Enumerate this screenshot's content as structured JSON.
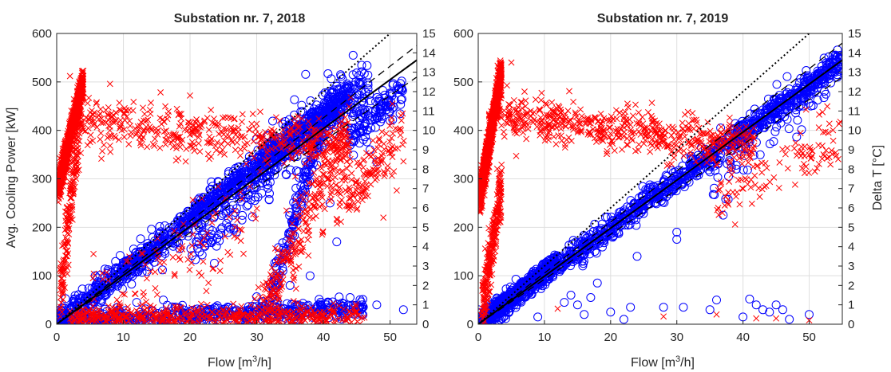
{
  "figure": {
    "colors": {
      "cooling_power": "#0000ff",
      "delta_t": "#ff0000",
      "fit": "#000000",
      "grid": "#dedede",
      "axes": "#262626"
    },
    "marker_shapes": {
      "cooling_power": "circle",
      "delta_t": "x"
    }
  },
  "chart_data": [
    {
      "type": "scatter",
      "title": "Substation nr. 7, 2018",
      "xlabel_main": "Flow [m",
      "xlabel_sup": "3",
      "xlabel_tail": "/h]",
      "ylabel_left": "Avg. Cooling Power [kW]",
      "ylabel_right": "",
      "xlim": [
        0,
        54
      ],
      "ylim_left": [
        0,
        600
      ],
      "ylim_right": [
        0,
        15
      ],
      "xticks": [
        0,
        10,
        20,
        30,
        40,
        50
      ],
      "yticks_left": [
        0,
        100,
        200,
        300,
        400,
        500,
        600
      ],
      "yticks_right": [
        0,
        1,
        2,
        3,
        4,
        5,
        6,
        7,
        8,
        9,
        10,
        11,
        12,
        13,
        14,
        15
      ],
      "grid": true,
      "reference_lines": [
        {
          "style": "dotted",
          "x": [
            0,
            50
          ],
          "y": [
            0,
            600
          ]
        },
        {
          "style": "dashed",
          "x": [
            0,
            54
          ],
          "y": [
            0,
            575
          ]
        },
        {
          "style": "solid",
          "x": [
            0,
            54
          ],
          "y": [
            0,
            545
          ]
        },
        {
          "style": "dashed",
          "x": [
            0,
            54
          ],
          "y": [
            0,
            510
          ]
        }
      ],
      "series": [
        {
          "axis": "left",
          "marker": "circle",
          "clusters": [
            {
              "x": [
                0.3,
                44
              ],
              "y": [
                5,
                475
              ],
              "n": 1100,
              "spread": 14
            },
            {
              "x": [
                30,
                47
              ],
              "y": [
                330,
                500
              ],
              "n": 260,
              "spread": 30
            },
            {
              "x": [
                0.3,
                46
              ],
              "y": [
                5,
                35
              ],
              "n": 520,
              "spread": 9
            },
            {
              "x": [
                31,
                40
              ],
              "y": [
                5,
                420
              ],
              "n": 160,
              "spread": 18
            },
            {
              "x": [
                20,
                32
              ],
              "y": [
                150,
                300
              ],
              "n": 90,
              "spread": 25
            },
            {
              "x": [
                44,
                52
              ],
              "y": [
                390,
                480
              ],
              "n": 120,
              "spread": 20
            }
          ],
          "points": [
            {
              "x": 48,
              "y": 40
            },
            {
              "x": 52,
              "y": 30
            },
            {
              "x": 47,
              "y": 360
            },
            {
              "x": 48,
              "y": 335
            },
            {
              "x": 50,
              "y": 420
            },
            {
              "x": 42,
              "y": 170
            },
            {
              "x": 35,
              "y": 80
            },
            {
              "x": 38,
              "y": 100
            },
            {
              "x": 41,
              "y": 250
            },
            {
              "x": 44,
              "y": 55
            },
            {
              "x": 12,
              "y": 45
            },
            {
              "x": 16,
              "y": 50
            }
          ]
        },
        {
          "axis": "right",
          "marker": "x",
          "clusters": [
            {
              "x": [
                0.2,
                4
              ],
              "y": [
                7,
                12.5
              ],
              "n": 900,
              "spread": 0.4
            },
            {
              "x": [
                0.5,
                4
              ],
              "y": [
                1.5,
                12
              ],
              "n": 200,
              "spread": 0.9
            },
            {
              "x": [
                4,
                44
              ],
              "y": [
                10.5,
                9.2
              ],
              "n": 450,
              "spread": 0.6
            },
            {
              "x": [
                30,
                44
              ],
              "y": [
                0.3,
                10
              ],
              "n": 280,
              "spread": 0.9
            },
            {
              "x": [
                2,
                46
              ],
              "y": [
                0.4,
                0.4
              ],
              "n": 520,
              "spread": 0.3
            },
            {
              "x": [
                5,
                30
              ],
              "y": [
                0.5,
                6
              ],
              "n": 110,
              "spread": 1.3
            },
            {
              "x": [
                42,
                52
              ],
              "y": [
                6,
                10
              ],
              "n": 140,
              "spread": 0.8
            }
          ],
          "points": [
            {
              "x": 2,
              "y": 12.8
            },
            {
              "x": 8,
              "y": 12.4
            },
            {
              "x": 20,
              "y": 11.8
            },
            {
              "x": 52,
              "y": 8.4
            },
            {
              "x": 51,
              "y": 6.9
            },
            {
              "x": 49,
              "y": 5.5
            }
          ]
        }
      ]
    },
    {
      "type": "scatter",
      "title": "Substation nr. 7, 2019",
      "xlabel_main": "Flow [m",
      "xlabel_sup": "3",
      "xlabel_tail": "/h]",
      "ylabel_left": "",
      "ylabel_right": "Delta T [°C]",
      "xlim": [
        0,
        55
      ],
      "ylim_left": [
        0,
        600
      ],
      "ylim_right": [
        0,
        15
      ],
      "xticks": [
        0,
        10,
        20,
        30,
        40,
        50
      ],
      "yticks_left": [
        0,
        100,
        200,
        300,
        400,
        500,
        600
      ],
      "yticks_right": [
        0,
        1,
        2,
        3,
        4,
        5,
        6,
        7,
        8,
        9,
        10,
        11,
        12,
        13,
        14,
        15
      ],
      "grid": true,
      "reference_lines": [
        {
          "style": "dotted",
          "x": [
            0,
            50
          ],
          "y": [
            0,
            600
          ]
        },
        {
          "style": "dashed",
          "x": [
            0,
            55
          ],
          "y": [
            0,
            580
          ]
        },
        {
          "style": "solid",
          "x": [
            0,
            55
          ],
          "y": [
            0,
            545
          ]
        },
        {
          "style": "dashed",
          "x": [
            0,
            55
          ],
          "y": [
            0,
            510
          ]
        }
      ],
      "series": [
        {
          "axis": "left",
          "marker": "circle",
          "clusters": [
            {
              "x": [
                0.1,
                55
              ],
              "y": [
                2,
                545
              ],
              "n": 1100,
              "spread": 12
            },
            {
              "x": [
                0.1,
                12
              ],
              "y": [
                2,
                130
              ],
              "n": 500,
              "spread": 9
            },
            {
              "x": [
                35,
                54
              ],
              "y": [
                300,
                530
              ],
              "n": 80,
              "spread": 35
            }
          ],
          "points": [
            {
              "x": 13,
              "y": 45
            },
            {
              "x": 14,
              "y": 60
            },
            {
              "x": 15,
              "y": 40
            },
            {
              "x": 16,
              "y": 20
            },
            {
              "x": 17,
              "y": 55
            },
            {
              "x": 18,
              "y": 85
            },
            {
              "x": 20,
              "y": 25
            },
            {
              "x": 22,
              "y": 10
            },
            {
              "x": 23,
              "y": 35
            },
            {
              "x": 28,
              "y": 35
            },
            {
              "x": 31,
              "y": 35
            },
            {
              "x": 35,
              "y": 30
            },
            {
              "x": 36,
              "y": 50
            },
            {
              "x": 40,
              "y": 15
            },
            {
              "x": 41,
              "y": 52
            },
            {
              "x": 42,
              "y": 40
            },
            {
              "x": 43,
              "y": 30
            },
            {
              "x": 44,
              "y": 25
            },
            {
              "x": 45,
              "y": 40
            },
            {
              "x": 46,
              "y": 30
            },
            {
              "x": 47,
              "y": 10
            },
            {
              "x": 50,
              "y": 20
            },
            {
              "x": 19,
              "y": 185
            },
            {
              "x": 24,
              "y": 140
            },
            {
              "x": 30,
              "y": 190
            },
            {
              "x": 30,
              "y": 175
            },
            {
              "x": 37,
              "y": 225
            },
            {
              "x": 39,
              "y": 320
            },
            {
              "x": 40,
              "y": 410
            },
            {
              "x": 9,
              "y": 15
            }
          ]
        },
        {
          "axis": "right",
          "marker": "x",
          "clusters": [
            {
              "x": [
                0.2,
                3.5
              ],
              "y": [
                6.5,
                13
              ],
              "n": 1000,
              "spread": 0.45
            },
            {
              "x": [
                0.5,
                3.5
              ],
              "y": [
                0.5,
                7
              ],
              "n": 260,
              "spread": 0.7
            },
            {
              "x": [
                3,
                42
              ],
              "y": [
                10.8,
                9.2
              ],
              "n": 560,
              "spread": 0.55
            },
            {
              "x": [
                36,
                55
              ],
              "y": [
                6.5,
                9.5
              ],
              "n": 110,
              "spread": 0.8
            }
          ],
          "points": [
            {
              "x": 5,
              "y": 13.5
            },
            {
              "x": 7,
              "y": 12
            },
            {
              "x": 36,
              "y": 0.5
            },
            {
              "x": 42,
              "y": 0.3
            },
            {
              "x": 45,
              "y": 0.3
            },
            {
              "x": 50,
              "y": 0.2
            },
            {
              "x": 28,
              "y": 0.4
            },
            {
              "x": 12,
              "y": 0.8
            }
          ]
        }
      ]
    }
  ]
}
